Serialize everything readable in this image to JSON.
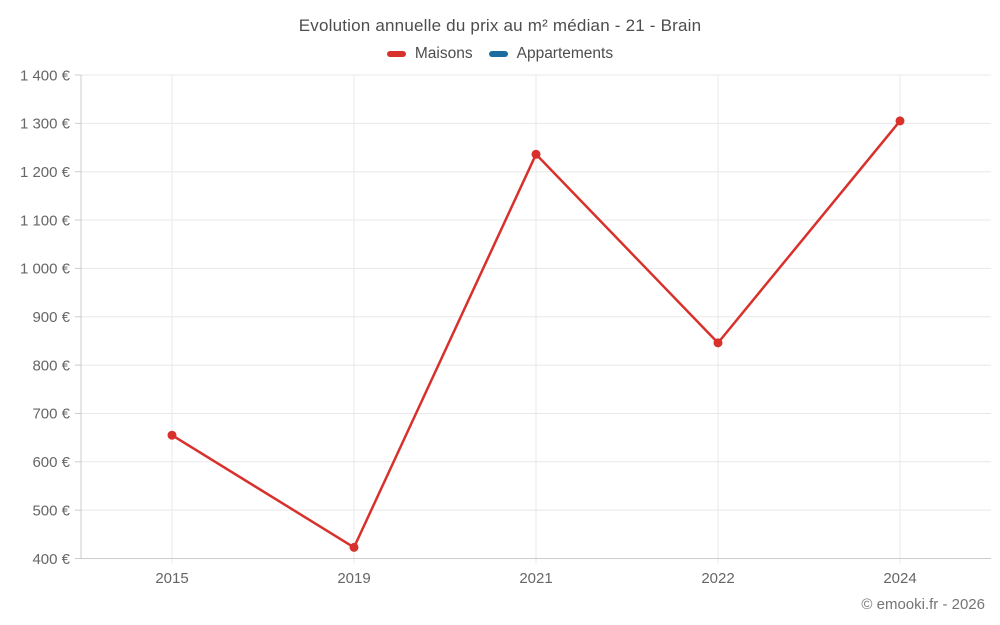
{
  "title": "Evolution annuelle du prix au m² médian - 21 - Brain",
  "legend": [
    {
      "label": "Maisons",
      "color": "#d8312c"
    },
    {
      "label": "Appartements",
      "color": "#1a6d9e"
    }
  ],
  "footer": {
    "credit": "© emooki.fr - 2026"
  },
  "chart_data": {
    "type": "line",
    "title": "Evolution annuelle du prix au m² médian - 21 - Brain",
    "categories": [
      "2015",
      "2019",
      "2021",
      "2022",
      "2024"
    ],
    "series": [
      {
        "name": "Maisons",
        "color": "#d8312c",
        "values": [
          655,
          423,
          1236,
          846,
          1305
        ]
      },
      {
        "name": "Appartements",
        "color": "#1a6d9e",
        "values": []
      }
    ],
    "xlabel": "",
    "ylabel": "",
    "ylim": [
      400,
      1400
    ],
    "ytick_step": 100,
    "ytick_labels": [
      "400 €",
      "500 €",
      "600 €",
      "700 €",
      "800 €",
      "900 €",
      "1 000 €",
      "1 100 €",
      "1 200 €",
      "1 300 €",
      "1 400 €"
    ],
    "grid": true,
    "legend_position": "top",
    "colors": {
      "gridline": "#e8e8e8",
      "axis": "#cccccc",
      "tick_text": "#666666",
      "title_text": "#4d4d4d"
    }
  }
}
